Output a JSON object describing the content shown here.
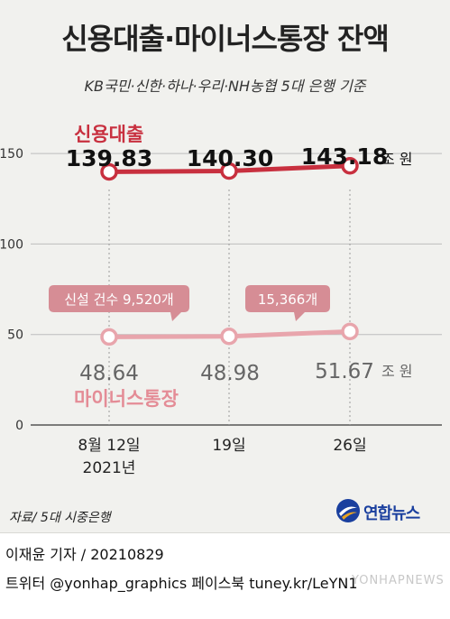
{
  "header": {
    "title": "신용대출·마이너스통장 잔액",
    "subtitle": "KB국민·신한·하나·우리·NH농협 5대 은행 기준"
  },
  "chart_data": {
    "type": "line",
    "categories": [
      "8월 12일\n2021년",
      "19일",
      "26일"
    ],
    "x_labels": [
      {
        "line1": "8월 12일",
        "line2": "2021년"
      },
      {
        "line1": "19일",
        "line2": ""
      },
      {
        "line1": "26일",
        "line2": ""
      }
    ],
    "unit": "조 원",
    "ylim": [
      0,
      160
    ],
    "yticks": [
      0,
      50,
      100,
      150
    ],
    "grid": "horizontal",
    "series": [
      {
        "name": "신용대출",
        "values": [
          139.83,
          140.3,
          143.18
        ],
        "labels": [
          "139.83",
          "140.30",
          "143.18"
        ],
        "color": "#c8303f"
      },
      {
        "name": "마이너스통장",
        "values": [
          48.64,
          48.98,
          51.67
        ],
        "labels": [
          "48.64",
          "48.98",
          "51.67"
        ],
        "color": "#e8a5ac"
      }
    ],
    "annotations": [
      {
        "text": "신설 건수 9,520개",
        "at_category": 0
      },
      {
        "text": "15,366개",
        "at_category": 1
      }
    ],
    "colors": {
      "red_series": "#c8303f",
      "pink_series": "#e8a5ac",
      "callout": "#d68d95",
      "pink_label": "#e48c96",
      "value_gray": "#666666"
    }
  },
  "source": "자료/ 5대 시중은행",
  "logo": {
    "text": "연합뉴스",
    "icon": "yonhap-logo-icon"
  },
  "credits": {
    "line1": "이재윤 기자 / 20210829",
    "line2": "트위터 @yonhap_graphics  페이스북 tuney.kr/LeYN1"
  },
  "watermark": "YONHAPNEWS"
}
